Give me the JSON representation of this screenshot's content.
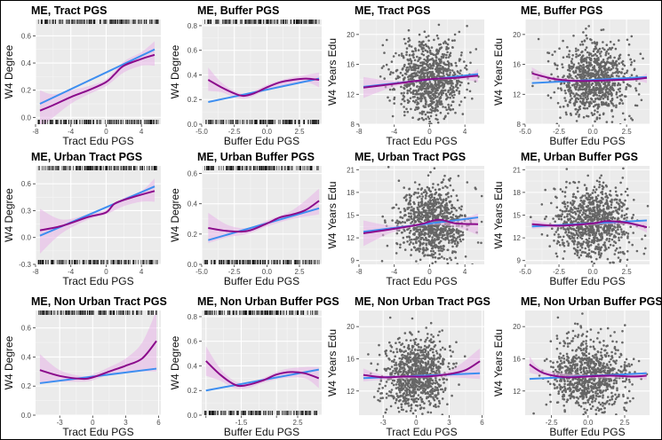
{
  "chart_data": [
    {
      "type": "line",
      "title": "ME, Tract PGS",
      "xlabel": "Tract Edu PGS",
      "ylabel": "W4 Degree",
      "xlim": [
        -8,
        6.2
      ],
      "ylim": [
        -0.05,
        0.72
      ],
      "xticks": [
        -8,
        -4,
        0,
        4
      ],
      "yticks": [
        0,
        0.2,
        0.4,
        0.6
      ],
      "xtick_labels": [
        "-8",
        "-4",
        "0",
        "4"
      ],
      "ytick_labels": [
        "0.0",
        "0.2",
        "0.4",
        "0.6"
      ],
      "rug": "both",
      "series": [
        {
          "kind": "linear",
          "x": [
            -7.5,
            5.5
          ],
          "y": [
            0.1,
            0.5
          ]
        },
        {
          "kind": "smooth",
          "x": [
            -7.5,
            -6,
            -4,
            -2,
            0,
            1,
            2,
            4,
            5.5
          ],
          "y": [
            0.05,
            0.09,
            0.15,
            0.2,
            0.26,
            0.32,
            0.38,
            0.43,
            0.46
          ]
        }
      ],
      "band": {
        "x": [
          -7.5,
          -6,
          -4,
          -2,
          0,
          2,
          4,
          5.5
        ],
        "lo": [
          -0.08,
          0.0,
          0.1,
          0.17,
          0.23,
          0.33,
          0.38,
          0.38
        ],
        "hi": [
          0.2,
          0.17,
          0.2,
          0.23,
          0.28,
          0.41,
          0.48,
          0.56
        ]
      }
    },
    {
      "type": "line",
      "title": "ME, Buffer PGS",
      "xlabel": "Buffer Edu PGS",
      "ylabel": "W4 Degree",
      "xlim": [
        -5,
        4.2
      ],
      "ylim": [
        0,
        0.85
      ],
      "xticks": [
        -5,
        -2.5,
        0,
        2.5
      ],
      "yticks": [
        0,
        0.2,
        0.4,
        0.6,
        0.8
      ],
      "xtick_labels": [
        "-5.0",
        "-2.5",
        "0.0",
        "2.5"
      ],
      "ytick_labels": [
        "0.0",
        "0.2",
        "0.4",
        "0.6",
        "0.8"
      ],
      "rug": "both",
      "series": [
        {
          "kind": "linear",
          "x": [
            -4.5,
            4
          ],
          "y": [
            0.18,
            0.37
          ]
        },
        {
          "kind": "smooth",
          "x": [
            -4.5,
            -3.5,
            -2.5,
            -1.8,
            -1,
            0,
            1,
            2,
            3,
            4
          ],
          "y": [
            0.36,
            0.3,
            0.25,
            0.23,
            0.25,
            0.3,
            0.34,
            0.36,
            0.37,
            0.36
          ]
        }
      ],
      "band": {
        "x": [
          -4.5,
          -3.5,
          -2.5,
          -1.5,
          0,
          1.5,
          3,
          4
        ],
        "lo": [
          0.27,
          0.26,
          0.22,
          0.21,
          0.28,
          0.32,
          0.34,
          0.3
        ],
        "hi": [
          0.46,
          0.34,
          0.27,
          0.25,
          0.32,
          0.37,
          0.4,
          0.42
        ]
      }
    },
    {
      "type": "scatter",
      "title": "ME, Tract PGS",
      "xlabel": "Tract Edu PGS",
      "ylabel": "W4 Years Edu",
      "xlim": [
        -8,
        6.2
      ],
      "ylim": [
        8,
        22
      ],
      "xticks": [
        -8,
        -4,
        0,
        4
      ],
      "yticks": [
        8,
        12,
        16,
        20
      ],
      "xtick_labels": [
        "-8",
        "-4",
        "0",
        "4"
      ],
      "ytick_labels": [
        "8",
        "12",
        "16",
        "20"
      ],
      "cloud": {
        "center_x": 0,
        "spread_x": 1.9,
        "center_y": 14,
        "spread_y": 2.6
      },
      "series": [
        {
          "kind": "linear",
          "x": [
            -7.5,
            5.5
          ],
          "y": [
            13.0,
            14.7
          ]
        },
        {
          "kind": "smooth",
          "x": [
            -7.5,
            -4,
            0,
            3,
            5.5
          ],
          "y": [
            12.9,
            13.4,
            14.0,
            14.2,
            14.5
          ]
        }
      ],
      "band": {
        "x": [
          -7.5,
          -4,
          0,
          4,
          5.5
        ],
        "lo": [
          11.5,
          13.0,
          13.9,
          13.9,
          13.6
        ],
        "hi": [
          14.3,
          13.8,
          14.1,
          14.5,
          15.4
        ]
      }
    },
    {
      "type": "scatter",
      "title": "ME, Buffer PGS",
      "xlabel": "Buffer Edu PGS",
      "ylabel": "W4 Years Edu",
      "xlim": [
        -5,
        4.2
      ],
      "ylim": [
        8,
        22
      ],
      "xticks": [
        -5,
        -2.5,
        0,
        2.5
      ],
      "yticks": [
        8,
        12,
        16,
        20
      ],
      "xtick_labels": [
        "-5.0",
        "-2.5",
        "0.0",
        "2.5"
      ],
      "ytick_labels": [
        "8",
        "12",
        "16",
        "20"
      ],
      "cloud": {
        "center_x": 0,
        "spread_x": 1.4,
        "center_y": 14,
        "spread_y": 2.5
      },
      "series": [
        {
          "kind": "linear",
          "x": [
            -4.5,
            4
          ],
          "y": [
            13.5,
            14.3
          ]
        },
        {
          "kind": "smooth",
          "x": [
            -4.5,
            -3,
            -1.5,
            0,
            1.5,
            3,
            4
          ],
          "y": [
            14.8,
            14.1,
            13.8,
            13.8,
            13.9,
            14.0,
            14.2
          ]
        }
      ],
      "band": {
        "x": [
          -4.5,
          -3,
          0,
          3,
          4
        ],
        "lo": [
          13.9,
          13.8,
          13.7,
          13.8,
          13.5
        ],
        "hi": [
          15.6,
          14.4,
          13.9,
          14.2,
          14.8
        ]
      }
    },
    {
      "type": "line",
      "title": "ME, Urban Tract PGS",
      "xlabel": "Tract Edu PGS",
      "ylabel": "W4 Degree",
      "xlim": [
        -8,
        6.2
      ],
      "ylim": [
        -0.3,
        0.8
      ],
      "xticks": [
        -8,
        -4,
        0,
        4
      ],
      "yticks": [
        -0.3,
        0,
        0.3,
        0.6
      ],
      "xtick_labels": [
        "-8",
        "-4",
        "0",
        "4"
      ],
      "ytick_labels": [
        "-0.3",
        "0.0",
        "0.3",
        "0.6"
      ],
      "rug": "both",
      "series": [
        {
          "kind": "linear",
          "x": [
            -7.5,
            5.5
          ],
          "y": [
            0.02,
            0.57
          ]
        },
        {
          "kind": "smooth",
          "x": [
            -7.5,
            -5,
            -2,
            0,
            1,
            3,
            5.5
          ],
          "y": [
            0.08,
            0.13,
            0.23,
            0.28,
            0.38,
            0.45,
            0.52
          ]
        }
      ],
      "band": {
        "x": [
          -7.5,
          -5,
          -2,
          0,
          2,
          4,
          5.5
        ],
        "lo": [
          -0.18,
          0.05,
          0.2,
          0.26,
          0.35,
          0.4,
          0.4
        ],
        "hi": [
          0.32,
          0.2,
          0.26,
          0.31,
          0.44,
          0.52,
          0.66
        ]
      }
    },
    {
      "type": "line",
      "title": "ME, Urban Buffer PGS",
      "xlabel": "Buffer Edu PGS",
      "ylabel": "W4 Degree",
      "xlim": [
        -5,
        4.2
      ],
      "ylim": [
        0,
        0.65
      ],
      "xticks": [
        -5,
        -2.5,
        0,
        2.5
      ],
      "yticks": [
        0,
        0.2,
        0.4,
        0.6
      ],
      "xtick_labels": [
        "-5.0",
        "-2.5",
        "0.0",
        "2.5"
      ],
      "ytick_labels": [
        "0.0",
        "0.2",
        "0.4",
        "0.6"
      ],
      "rug": "both",
      "series": [
        {
          "kind": "linear",
          "x": [
            -4.5,
            4
          ],
          "y": [
            0.16,
            0.37
          ]
        },
        {
          "kind": "smooth",
          "x": [
            -4.5,
            -3,
            -1.5,
            0,
            1,
            2,
            3,
            4
          ],
          "y": [
            0.24,
            0.22,
            0.22,
            0.27,
            0.31,
            0.33,
            0.36,
            0.42
          ]
        }
      ],
      "band": {
        "x": [
          -4.5,
          -3,
          -1.5,
          0,
          2,
          4
        ],
        "lo": [
          0.14,
          0.18,
          0.2,
          0.25,
          0.3,
          0.33
        ],
        "hi": [
          0.34,
          0.26,
          0.24,
          0.29,
          0.36,
          0.5
        ]
      }
    },
    {
      "type": "scatter",
      "title": "ME, Urban Tract PGS",
      "xlabel": "Tract Edu PGS",
      "ylabel": "W4 Years Edu",
      "xlim": [
        -8,
        6.2
      ],
      "ylim": [
        8.5,
        21.5
      ],
      "xticks": [
        -8,
        -4,
        0,
        4
      ],
      "yticks": [
        9,
        12,
        15,
        18,
        21
      ],
      "xtick_labels": [
        "-8",
        "-4",
        "0",
        "4"
      ],
      "ytick_labels": [
        "9",
        "12",
        "15",
        "18",
        "21"
      ],
      "cloud": {
        "center_x": 0.3,
        "spread_x": 1.9,
        "center_y": 14,
        "spread_y": 2.4
      },
      "series": [
        {
          "kind": "linear",
          "x": [
            -7.5,
            5.5
          ],
          "y": [
            12.8,
            14.7
          ]
        },
        {
          "kind": "smooth",
          "x": [
            -7.5,
            -4,
            -1,
            1,
            3,
            5.5
          ],
          "y": [
            12.6,
            13.2,
            13.8,
            14.4,
            13.9,
            13.8
          ]
        }
      ],
      "band": {
        "x": [
          -7.5,
          -4,
          0,
          3,
          5.5
        ],
        "lo": [
          10.9,
          12.8,
          13.7,
          13.4,
          12.4
        ],
        "hi": [
          14.3,
          13.6,
          14.1,
          14.4,
          15.2
        ]
      }
    },
    {
      "type": "scatter",
      "title": "ME, Urban Buffer PGS",
      "xlabel": "Buffer Edu PGS",
      "ylabel": "W4 Years Edu",
      "xlim": [
        -5,
        4.2
      ],
      "ylim": [
        8.5,
        21.5
      ],
      "xticks": [
        -5,
        -2.5,
        0,
        2.5
      ],
      "yticks": [
        9,
        12,
        15,
        18,
        21
      ],
      "xtick_labels": [
        "-5.0",
        "-2.5",
        "0.0",
        "2.5"
      ],
      "ytick_labels": [
        "9",
        "12",
        "15",
        "18",
        "21"
      ],
      "cloud": {
        "center_x": 0,
        "spread_x": 1.4,
        "center_y": 14,
        "spread_y": 2.4
      },
      "series": [
        {
          "kind": "linear",
          "x": [
            -4.5,
            4
          ],
          "y": [
            13.5,
            14.3
          ]
        },
        {
          "kind": "smooth",
          "x": [
            -4.5,
            -2.5,
            0,
            1,
            2.5,
            4
          ],
          "y": [
            13.8,
            13.6,
            13.9,
            14.2,
            14.0,
            13.4
          ]
        }
      ],
      "band": {
        "x": [
          -4.5,
          -2.5,
          0,
          2.5,
          4
        ],
        "lo": [
          13.2,
          13.4,
          13.7,
          13.7,
          12.7
        ],
        "hi": [
          14.4,
          13.8,
          14.1,
          14.3,
          14.1
        ]
      }
    },
    {
      "type": "line",
      "title": "ME, Non Urban Tract PGS",
      "xlabel": "Tract Edu PGS",
      "ylabel": "W4 Degree",
      "xlim": [
        -5.2,
        6.2
      ],
      "ylim": [
        0,
        0.72
      ],
      "xticks": [
        -3,
        0,
        3,
        6
      ],
      "yticks": [
        0,
        0.2,
        0.4,
        0.6
      ],
      "xtick_labels": [
        "-3",
        "0",
        "3",
        "6"
      ],
      "ytick_labels": [
        "0.0",
        "0.2",
        "0.4",
        "0.6"
      ],
      "rug": "top",
      "series": [
        {
          "kind": "linear",
          "x": [
            -4.8,
            5.8
          ],
          "y": [
            0.22,
            0.32
          ]
        },
        {
          "kind": "smooth",
          "x": [
            -4.8,
            -3,
            -1,
            0,
            1.5,
            3,
            4.5,
            5.8
          ],
          "y": [
            0.31,
            0.27,
            0.25,
            0.26,
            0.3,
            0.34,
            0.39,
            0.51
          ]
        }
      ],
      "band": {
        "x": [
          -4.8,
          -3,
          -1,
          0,
          1.5,
          3,
          4.5,
          5.8
        ],
        "lo": [
          0.22,
          0.23,
          0.23,
          0.24,
          0.28,
          0.3,
          0.3,
          0.3
        ],
        "hi": [
          0.42,
          0.31,
          0.27,
          0.28,
          0.33,
          0.39,
          0.5,
          0.72
        ]
      }
    },
    {
      "type": "line",
      "title": "ME, Non Urban Buffer PGS",
      "xlabel": "Buffer Edu PGS",
      "ylabel": "W4 Degree",
      "xlim": [
        -4.3,
        4.2
      ],
      "ylim": [
        0,
        0.85
      ],
      "xticks": [
        -4,
        -1.5,
        1,
        2.5
      ],
      "yticks": [
        0,
        0.2,
        0.4,
        0.6,
        0.8
      ],
      "xtick_labels": [
        "",
        "-1.5",
        "",
        "2.5"
      ],
      "ytick_labels": [
        "0.0",
        "0.2",
        "0.4",
        "0.6",
        "0.8"
      ],
      "rug": "both",
      "series": [
        {
          "kind": "linear",
          "x": [
            -4,
            4
          ],
          "y": [
            0.2,
            0.37
          ]
        },
        {
          "kind": "smooth",
          "x": [
            -4,
            -3,
            -2,
            -1.3,
            0,
            1,
            2,
            3,
            4
          ],
          "y": [
            0.44,
            0.33,
            0.25,
            0.24,
            0.28,
            0.33,
            0.35,
            0.34,
            0.3
          ]
        }
      ],
      "band": {
        "x": [
          -4,
          -3,
          -2,
          -1,
          0,
          1.5,
          3,
          4
        ],
        "lo": [
          0.32,
          0.28,
          0.22,
          0.22,
          0.26,
          0.3,
          0.3,
          0.22
        ],
        "hi": [
          0.56,
          0.38,
          0.28,
          0.26,
          0.3,
          0.37,
          0.39,
          0.39
        ]
      }
    },
    {
      "type": "scatter",
      "title": "ME, Non Urban Tract PGS",
      "xlabel": "Tract Edu PGS",
      "ylabel": "W4 Years Edu",
      "xlim": [
        -5.2,
        6.2
      ],
      "ylim": [
        9,
        22
      ],
      "xticks": [
        -3,
        0,
        3,
        6
      ],
      "yticks": [
        12,
        16,
        20
      ],
      "xtick_labels": [
        "-3",
        "0",
        "3",
        "6"
      ],
      "ytick_labels": [
        "12",
        "16",
        "20"
      ],
      "cloud": {
        "center_x": 0,
        "spread_x": 1.4,
        "center_y": 14,
        "spread_y": 2.4
      },
      "series": [
        {
          "kind": "linear",
          "x": [
            -4.8,
            5.8
          ],
          "y": [
            13.6,
            14.2
          ]
        },
        {
          "kind": "smooth",
          "x": [
            -4.8,
            -3,
            -1,
            1,
            3,
            4.5,
            5.8
          ],
          "y": [
            14.0,
            13.7,
            13.8,
            13.8,
            14.1,
            14.6,
            15.7
          ]
        }
      ],
      "band": {
        "x": [
          -4.8,
          -3,
          0,
          3,
          5.8
        ],
        "lo": [
          13.2,
          13.4,
          13.6,
          13.7,
          13.5
        ],
        "hi": [
          14.8,
          14.0,
          14.0,
          14.5,
          17.3
        ]
      }
    },
    {
      "type": "scatter",
      "title": "ME, Non Urban Buffer PGS",
      "xlabel": "Buffer Edu PGS",
      "ylabel": "W4 Years Edu",
      "xlim": [
        -4.3,
        4.2
      ],
      "ylim": [
        9,
        22
      ],
      "xticks": [
        -2.5,
        0,
        2.5
      ],
      "yticks": [
        12,
        16,
        20
      ],
      "xtick_labels": [
        "-2.5",
        "0.0",
        "2.5"
      ],
      "ytick_labels": [
        "12",
        "16",
        "20"
      ],
      "cloud": {
        "center_x": 0,
        "spread_x": 1.3,
        "center_y": 14,
        "spread_y": 2.4
      },
      "series": [
        {
          "kind": "linear",
          "x": [
            -4,
            4
          ],
          "y": [
            13.5,
            14.2
          ]
        },
        {
          "kind": "smooth",
          "x": [
            -4,
            -3,
            -1.5,
            0,
            1.5,
            3,
            4
          ],
          "y": [
            15.3,
            14.2,
            13.7,
            13.8,
            13.9,
            13.8,
            13.9
          ]
        }
      ],
      "band": {
        "x": [
          -4,
          -3,
          0,
          3,
          4
        ],
        "lo": [
          14.3,
          13.9,
          13.6,
          13.6,
          13.4
        ],
        "hi": [
          16.3,
          14.6,
          14.0,
          14.1,
          14.5
        ]
      }
    }
  ]
}
